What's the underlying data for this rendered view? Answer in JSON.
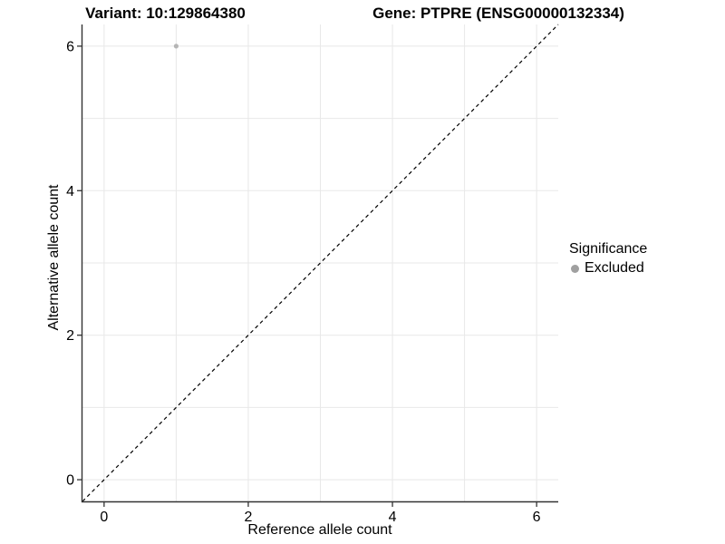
{
  "titles": {
    "variant": "Variant: 10:129864380",
    "gene": "Gene: PTPRE (ENSG00000132334)"
  },
  "axes": {
    "x_label": "Reference allele count",
    "y_label": "Alternative allele count"
  },
  "legend": {
    "title": "Significance",
    "items": [
      {
        "label": "Excluded",
        "color": "#a0a0a0"
      }
    ]
  },
  "colors": {
    "background": "#ffffff",
    "grid": "#e8e8e8",
    "axis": "#333333",
    "tick_label": "#000000",
    "reference_line": "#000000",
    "point": "#b5b5b5"
  },
  "chart_data": {
    "type": "scatter",
    "title": "Variant: 10:129864380 | Gene: PTPRE (ENSG00000132334)",
    "xlabel": "Reference allele count",
    "ylabel": "Alternative allele count",
    "xlim": [
      -0.3,
      6.3
    ],
    "ylim": [
      -0.3,
      6.3
    ],
    "x_ticks": [
      0,
      2,
      4,
      6
    ],
    "y_ticks": [
      0,
      2,
      4,
      6
    ],
    "x_minor_ticks": [
      1,
      3,
      5
    ],
    "y_minor_ticks": [
      1,
      3,
      5
    ],
    "grid": true,
    "legend_position": "right",
    "series": [
      {
        "name": "Excluded",
        "color": "#b5b5b5",
        "points": [
          {
            "x": 1,
            "y": 6
          }
        ]
      }
    ],
    "reference_line": {
      "type": "identity",
      "style": "dashed",
      "color": "#000000",
      "from": [
        -0.3,
        -0.3
      ],
      "to": [
        6.3,
        6.3
      ]
    }
  }
}
